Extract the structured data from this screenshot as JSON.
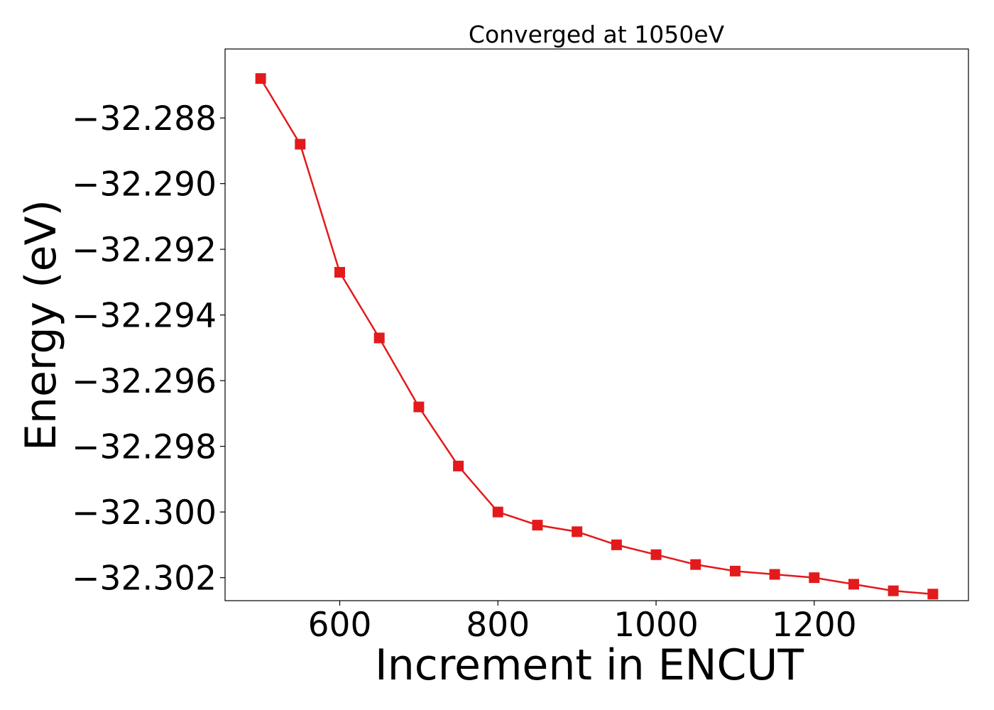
{
  "chart_data": {
    "type": "line",
    "title": "Converged at 1050eV",
    "xlabel": "Increment in ENCUT",
    "ylabel": "Energy (eV)",
    "xlim": [
      455,
      1395
    ],
    "ylim": [
      -32.3027,
      -32.2859
    ],
    "xticks": [
      {
        "value": 600,
        "label": "600"
      },
      {
        "value": 800,
        "label": "800"
      },
      {
        "value": 1000,
        "label": "1000"
      },
      {
        "value": 1200,
        "label": "1200"
      }
    ],
    "yticks": [
      {
        "value": -32.288,
        "label": "−32.288"
      },
      {
        "value": -32.29,
        "label": "−32.290"
      },
      {
        "value": -32.292,
        "label": "−32.292"
      },
      {
        "value": -32.294,
        "label": "−32.294"
      },
      {
        "value": -32.296,
        "label": "−32.296"
      },
      {
        "value": -32.298,
        "label": "−32.298"
      },
      {
        "value": -32.3,
        "label": "−32.300"
      },
      {
        "value": -32.302,
        "label": "−32.302"
      }
    ],
    "grid": false,
    "series": [
      {
        "color": "#e31a1c",
        "marker": "square",
        "x": [
          500,
          550,
          600,
          650,
          700,
          750,
          800,
          850,
          900,
          950,
          1000,
          1050,
          1100,
          1150,
          1200,
          1250,
          1300,
          1350
        ],
        "y": [
          -32.2868,
          -32.2888,
          -32.2927,
          -32.2947,
          -32.2968,
          -32.2986,
          -32.3,
          -32.3004,
          -32.3006,
          -32.301,
          -32.3013,
          -32.3016,
          -32.3018,
          -32.3019,
          -32.302,
          -32.3022,
          -32.3024,
          -32.3025
        ]
      }
    ]
  }
}
